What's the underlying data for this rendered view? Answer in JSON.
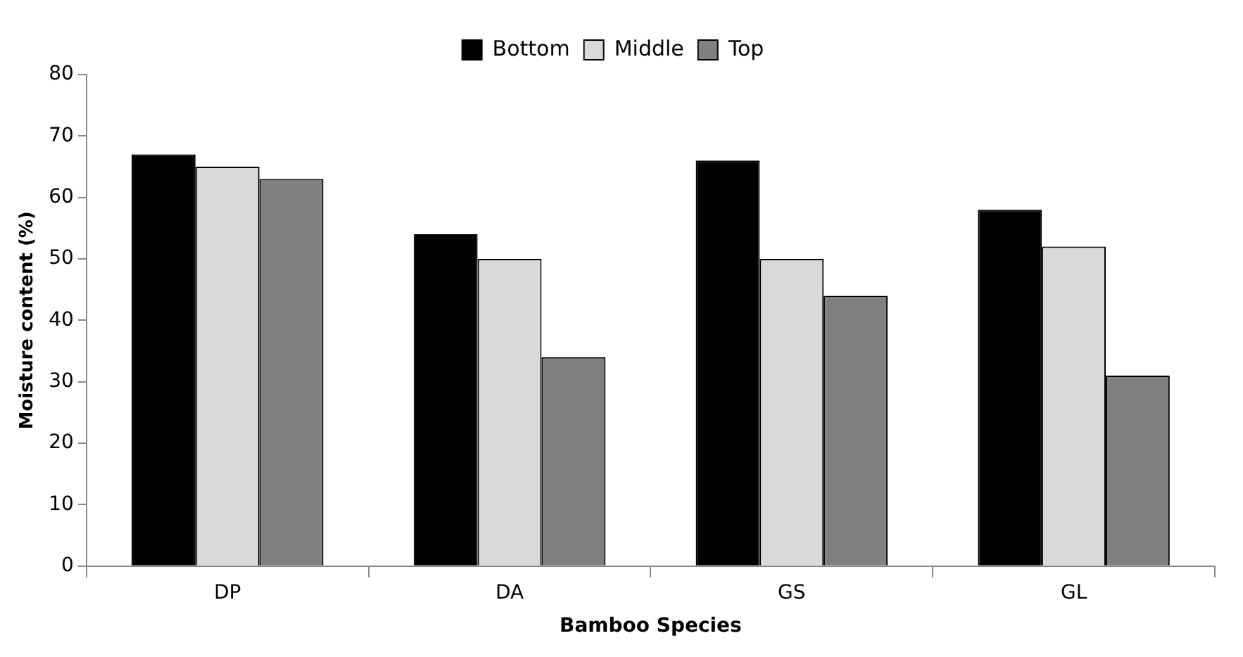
{
  "chart_data": {
    "type": "bar",
    "xlabel": "Bamboo Species",
    "ylabel": "Moisture content (%)",
    "categories": [
      "DP",
      "DA",
      "GS",
      "GL"
    ],
    "series": [
      {
        "name": "Bottom",
        "color": "#000000",
        "values": [
          67,
          54,
          66,
          58
        ]
      },
      {
        "name": "Middle",
        "color": "#d9d9d9",
        "values": [
          65,
          50,
          50,
          52
        ]
      },
      {
        "name": "Top",
        "color": "#808080",
        "values": [
          63,
          34,
          44,
          31
        ]
      }
    ],
    "ylim": [
      0,
      80
    ],
    "yticks": [
      0,
      10,
      20,
      30,
      40,
      50,
      60,
      70,
      80
    ],
    "grid": false,
    "legend": "top"
  }
}
